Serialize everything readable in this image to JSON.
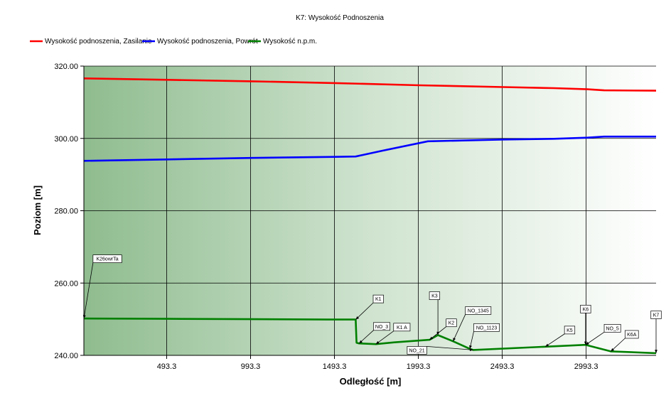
{
  "chart_data": {
    "type": "line",
    "title": "K7: Wysokość Podnoszenia",
    "xlabel": "Odległość [m]",
    "ylabel": "Poziom [m]",
    "xlim": [
      0,
      3410
    ],
    "ylim": [
      240,
      320
    ],
    "x_ticks": [
      "493.3",
      "993.3",
      "1493.3",
      "1993.3",
      "2493.3",
      "2993.3"
    ],
    "x_tick_values": [
      493.3,
      993.3,
      1493.3,
      1993.3,
      2493.3,
      2993.3
    ],
    "y_ticks": [
      "320.00",
      "300.00",
      "280.00",
      "260.00",
      "240.00"
    ],
    "y_tick_values": [
      320,
      300,
      280,
      260,
      240
    ],
    "grid": true,
    "legend_position": "top-left",
    "series": [
      {
        "name": "Wysokość podnoszenia, Zasilanie",
        "color": "#ff0000",
        "x": [
          0,
          500,
          1000,
          1500,
          2000,
          2500,
          2800,
          3000,
          3100,
          3410
        ],
        "y": [
          316.6,
          316.2,
          315.8,
          315.3,
          314.7,
          314.2,
          313.9,
          313.6,
          313.3,
          313.2
        ]
      },
      {
        "name": "Wysokość podnoszenia, Powrót",
        "color": "#0000ff",
        "x": [
          0,
          500,
          1000,
          1500,
          1620,
          1780,
          2050,
          2500,
          2800,
          3000,
          3100,
          3410
        ],
        "y": [
          293.8,
          294.2,
          294.6,
          294.9,
          295.0,
          296.6,
          299.2,
          299.7,
          299.9,
          300.2,
          300.5,
          300.5
        ]
      },
      {
        "name": "Wysokość n.p.m.",
        "color": "#008000",
        "x": [
          0,
          500,
          1000,
          1450,
          1620,
          1625,
          1640,
          1740,
          1850,
          2060,
          2110,
          2200,
          2300,
          2320,
          2750,
          2990,
          3140,
          3410
        ],
        "y": [
          250.2,
          250.1,
          250.0,
          249.9,
          249.9,
          243.5,
          243.3,
          243.1,
          243.6,
          244.3,
          245.6,
          243.9,
          241.8,
          241.5,
          242.4,
          242.9,
          241.1,
          240.6
        ]
      }
    ],
    "annotations": [
      {
        "label": "K26owrTa",
        "x": 0,
        "y": 250.2,
        "lx": 140,
        "ly": 266.7
      },
      {
        "label": "K1",
        "x": 1620,
        "y": 249.9,
        "lx": 1755,
        "ly": 255.6
      },
      {
        "label": "NO_3",
        "x": 1640,
        "y": 243.3,
        "lx": 1775,
        "ly": 248.0
      },
      {
        "label": "K1 A",
        "x": 1740,
        "y": 243.1,
        "lx": 1895,
        "ly": 247.8
      },
      {
        "label": "K3",
        "x": 2110,
        "y": 245.6,
        "lx": 2090,
        "ly": 256.5
      },
      {
        "label": "K2",
        "x": 2060,
        "y": 244.3,
        "lx": 2190,
        "ly": 249.0
      },
      {
        "label": "NO_1345",
        "x": 2200,
        "y": 243.9,
        "lx": 2350,
        "ly": 252.4
      },
      {
        "label": "NO_1123",
        "x": 2300,
        "y": 241.8,
        "lx": 2400,
        "ly": 247.7
      },
      {
        "label": "NO_21",
        "x": 2320,
        "y": 241.5,
        "lx": 1985,
        "ly": 241.4
      },
      {
        "label": "K5",
        "x": 2750,
        "y": 242.4,
        "lx": 2895,
        "ly": 247.0
      },
      {
        "label": "K6",
        "x": 2990,
        "y": 242.9,
        "lx": 2990,
        "ly": 252.8
      },
      {
        "label": "NO_5",
        "x": 2990,
        "y": 242.9,
        "lx": 3150,
        "ly": 247.5
      },
      {
        "label": "K6A",
        "x": 3140,
        "y": 241.1,
        "lx": 3265,
        "ly": 245.8
      },
      {
        "label": "K7",
        "x": 3410,
        "y": 240.6,
        "lx": 3410,
        "ly": 251.2
      }
    ]
  }
}
